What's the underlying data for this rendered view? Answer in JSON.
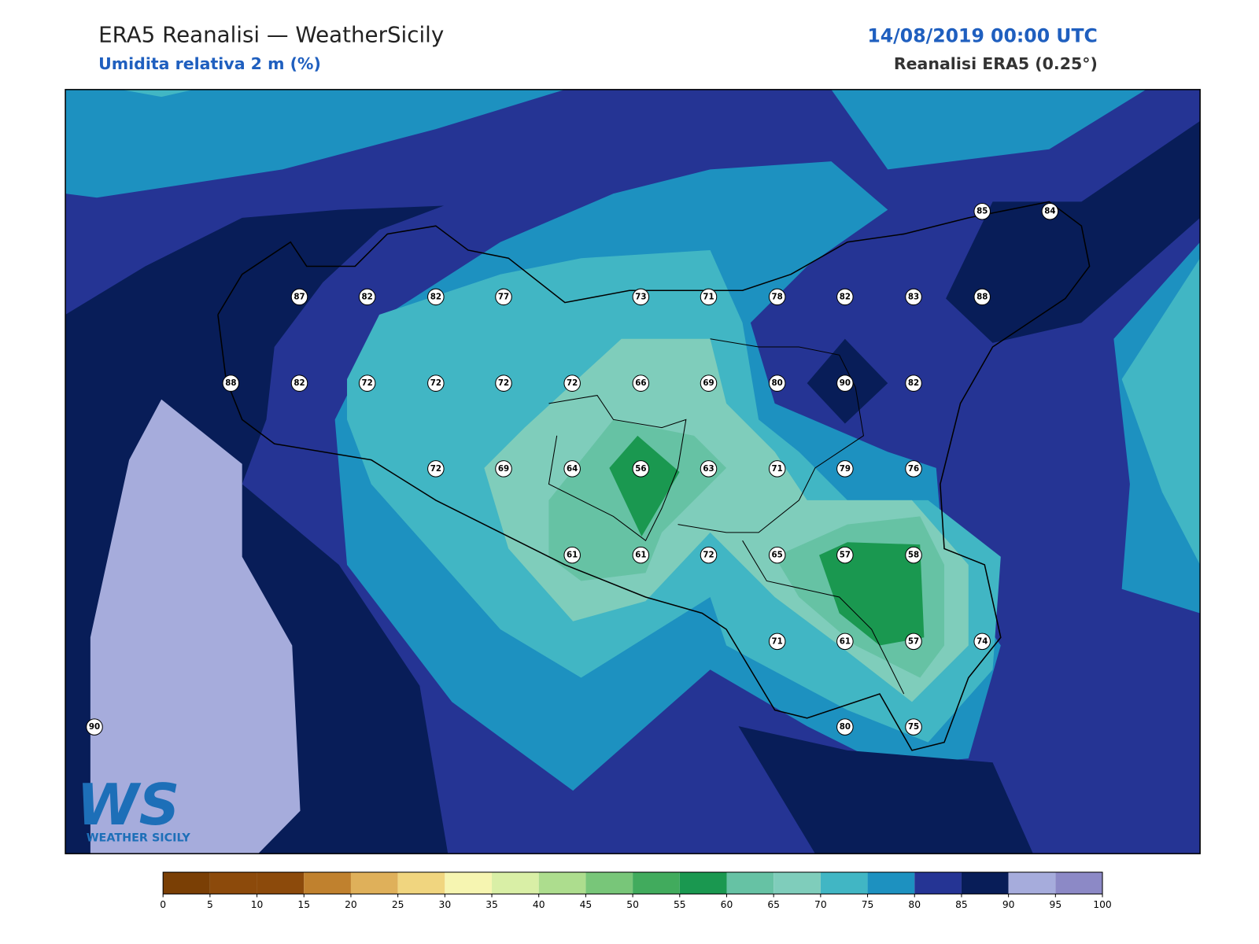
{
  "header": {
    "title": "ERA5 Reanalisi — WeatherSicily",
    "subtitle": "Umidita relativa 2 m (%)",
    "datetime": "14/08/2019 00:00 UTC",
    "source": "Reanalisi ERA5 (0.25°)"
  },
  "stations": {
    "values": [
      85,
      84,
      87,
      82,
      82,
      77,
      73,
      71,
      78,
      82,
      83,
      88,
      88,
      82,
      72,
      72,
      72,
      72,
      66,
      69,
      80,
      90,
      82,
      72,
      69,
      64,
      56,
      63,
      71,
      79,
      76,
      61,
      61,
      72,
      65,
      57,
      58,
      71,
      61,
      57,
      74,
      90,
      80,
      75
    ]
  },
  "colorbar": {
    "ticks": [
      0,
      5,
      10,
      15,
      20,
      25,
      30,
      35,
      40,
      45,
      50,
      55,
      60,
      65,
      70,
      75,
      80,
      85,
      90,
      95,
      100
    ],
    "colors": [
      "#7a3f05",
      "#8c4a0b",
      "#8c4a0b",
      "#c0812e",
      "#dfb05a",
      "#f0d57f",
      "#f6f5b1",
      "#d9efa6",
      "#addd8e",
      "#78c679",
      "#41ab5d",
      "#1a9850",
      "#66c2a4",
      "#7fcdbb",
      "#41b6c4",
      "#1d91c0",
      "#253494",
      "#081d58",
      "#a6acdc",
      "#8c89c6"
    ]
  },
  "logo": {
    "mark": "WS",
    "text": "WEATHER SICILY"
  }
}
